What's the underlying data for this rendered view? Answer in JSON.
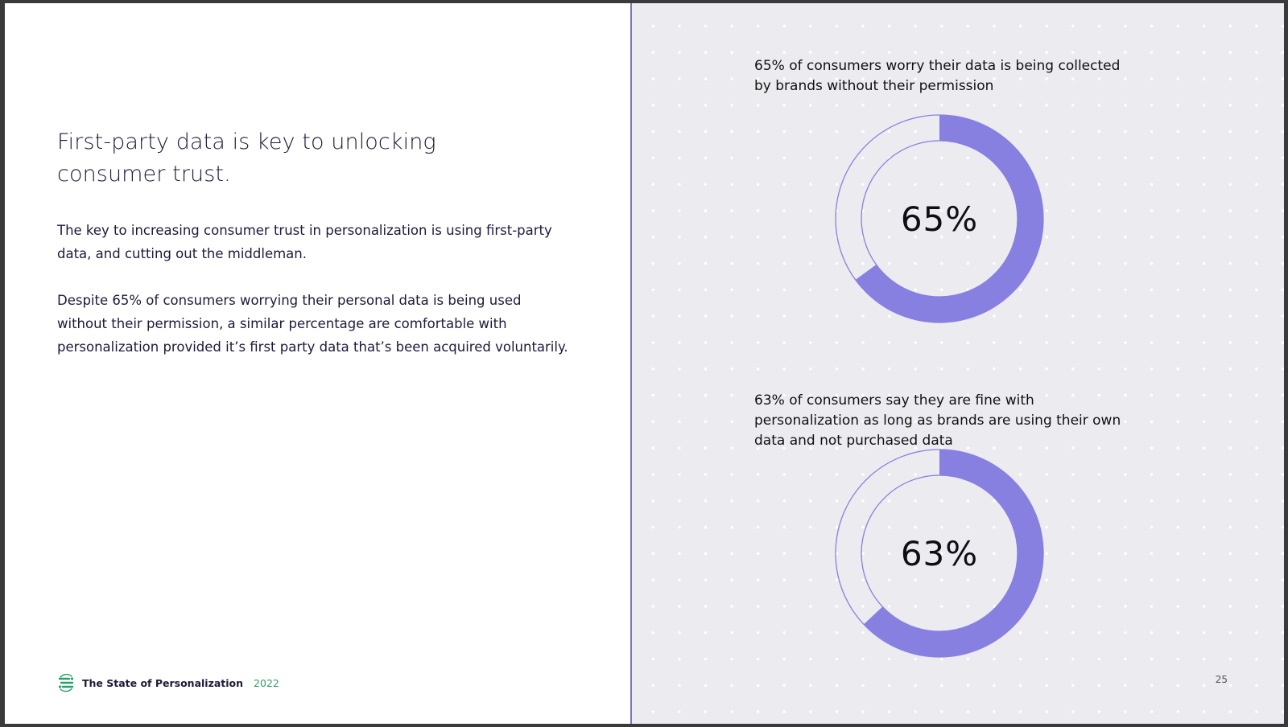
{
  "left": {
    "heading": "First-party data is key to unlocking consumer trust.",
    "paragraph_1": "The key to increasing consumer trust in personalization is using first-party data, and cutting out the middleman.",
    "paragraph_2": "Despite 65% of consumers worrying their personal data is being used without their permission, a similar percentage are comfortable with personalization provided it’s first party data that’s been acquired voluntarily."
  },
  "footer": {
    "logo_icon": "segment-logo-icon",
    "brand": "The State of Personalization",
    "year": "2022"
  },
  "page_number": "25",
  "colors": {
    "accent": "#8880e0",
    "ring_outline": "#8880e0",
    "panel_bg": "#ecebf0",
    "divider": "#7e72c8",
    "year_green": "#2d9f6a"
  },
  "chart_data": [
    {
      "type": "pie",
      "variant": "donut",
      "title": "65% of consumers worry their data is being collected by brands without their permission",
      "values": [
        65,
        35
      ],
      "center_label": "65%"
    },
    {
      "type": "pie",
      "variant": "donut",
      "title": "63% of consumers say they are fine with personalization as long as brands are using their own data and not purchased data",
      "values": [
        63,
        37
      ],
      "center_label": "63%"
    }
  ]
}
